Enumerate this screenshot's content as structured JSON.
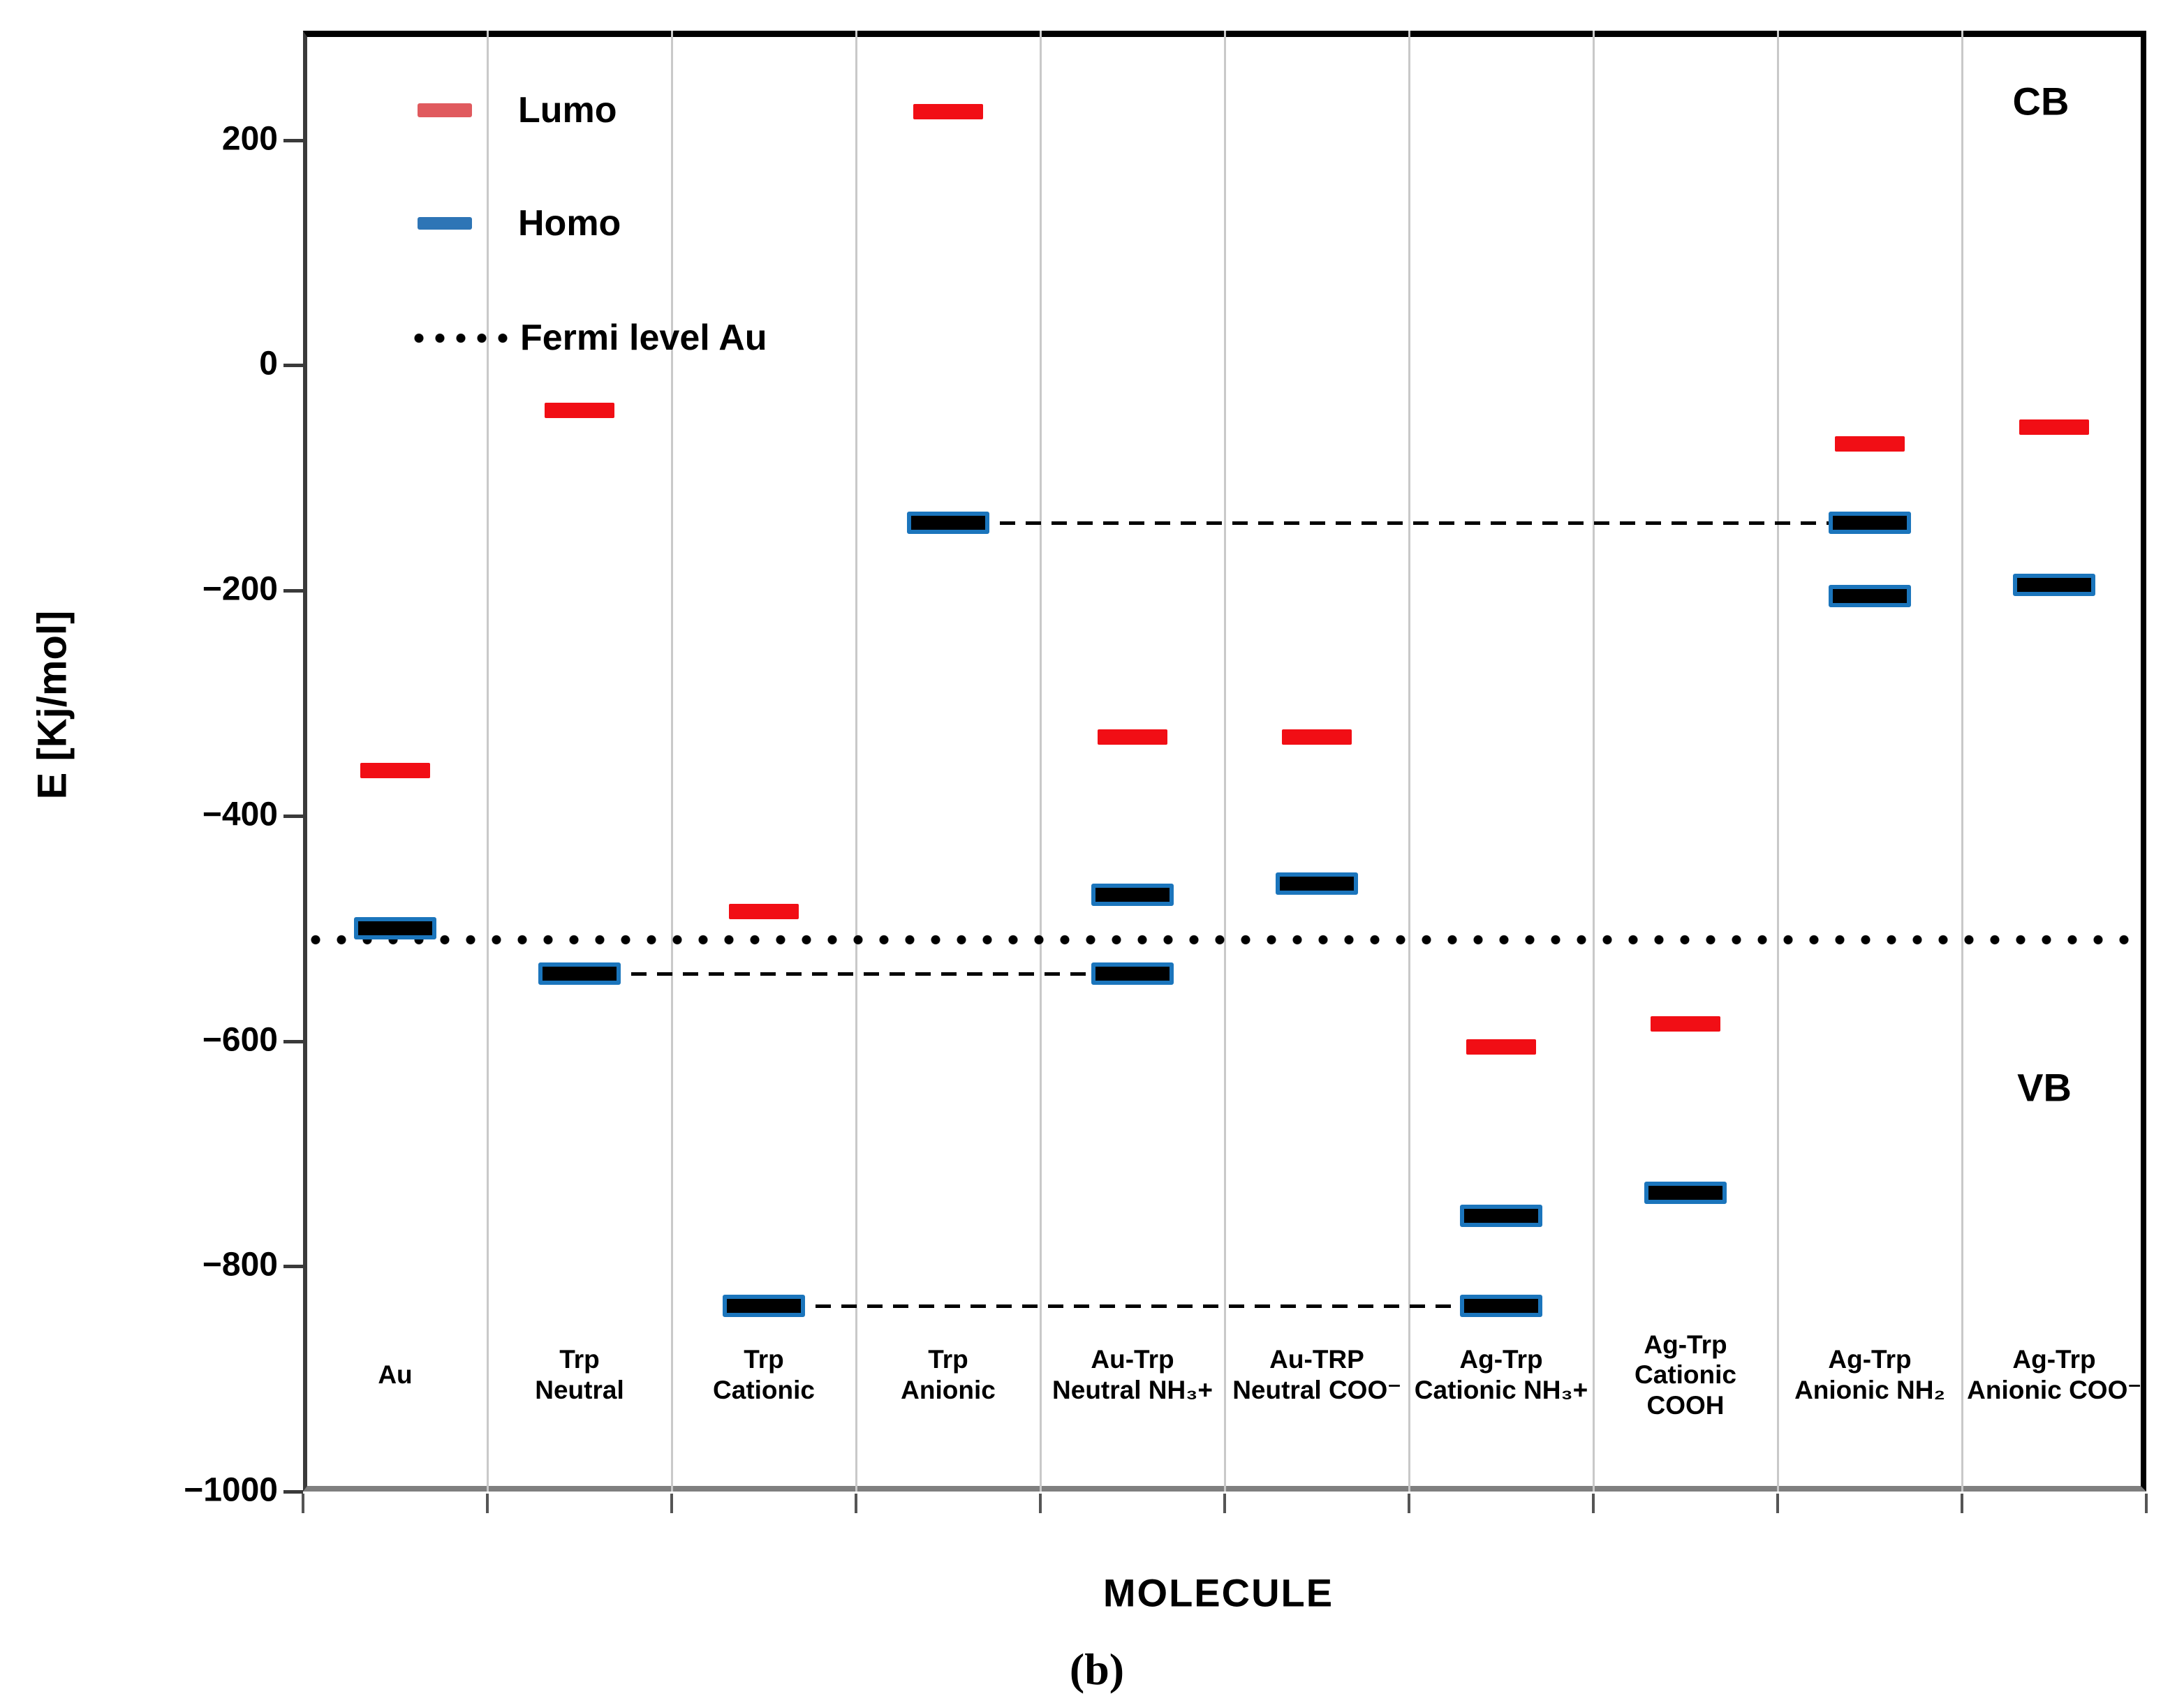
{
  "chart_data": {
    "type": "scatter",
    "subtype": "energy-level-diagram",
    "title": "(b)",
    "xlabel": "MOLECULE",
    "ylabel": "E [Kj/mol]",
    "ylim": [
      -1000,
      297
    ],
    "yticks": [
      200,
      0,
      -200,
      -400,
      -600,
      -800,
      -1000
    ],
    "ytick_labels": [
      "200",
      "0",
      "−200",
      "−400",
      "−600",
      "−800",
      "−1000"
    ],
    "grid": "vertical-only",
    "legend_position": "top-left-inside",
    "fermi_level_value": -510,
    "band_labels": {
      "cb": "CB",
      "vb": "VB"
    },
    "legend": [
      {
        "label": "Lumo",
        "marker": "red-dash"
      },
      {
        "label": "Homo",
        "marker": "blue-dash"
      },
      {
        "label": "Fermi level Au",
        "marker": "black-dotted-line"
      }
    ],
    "colors": {
      "lumo": "#f10e15",
      "homo_fill": "#000000",
      "homo_edge": "#1b75bc",
      "legend_lumo": "#e05a5e",
      "legend_homo": "#2e75b6",
      "grid": "#c9c9c9",
      "fermi": "#000000"
    },
    "categories": [
      {
        "name": "Au",
        "lines": [
          "Au"
        ]
      },
      {
        "name": "Trp Neutral",
        "lines": [
          "Trp",
          "Neutral"
        ]
      },
      {
        "name": "Trp Cationic",
        "lines": [
          "Trp",
          "Cationic"
        ]
      },
      {
        "name": "Trp Anionic",
        "lines": [
          "Trp",
          "Anionic"
        ]
      },
      {
        "name": "Au-Trp Neutral NH3+",
        "lines": [
          "Au-Trp",
          "Neutral NH₃+"
        ]
      },
      {
        "name": "Au-TRP Neutral COO-",
        "lines": [
          "Au-TRP",
          "Neutral COO⁻"
        ]
      },
      {
        "name": "Ag-Trp Cationic NH3+",
        "lines": [
          "Ag-Trp",
          "Cationic NH₃+"
        ]
      },
      {
        "name": "Ag-Trp Cationic COOH",
        "lines": [
          "Ag-Trp",
          "Cationic",
          "COOH"
        ]
      },
      {
        "name": "Ag-Trp Anionic NH2",
        "lines": [
          "Ag-Trp",
          "Anionic NH₂"
        ]
      },
      {
        "name": "Ag-Trp Anionic COO-",
        "lines": [
          "Ag-Trp",
          "Anionic COO⁻"
        ]
      }
    ],
    "series": [
      {
        "name": "Lumo",
        "values": [
          -360,
          -40,
          -485,
          225,
          -330,
          -330,
          -605,
          -585,
          -70,
          -55
        ]
      },
      {
        "name": "Homo",
        "values_per_category": [
          [
            -500
          ],
          [
            -540
          ],
          [
            -835
          ],
          [
            -140
          ],
          [
            -470,
            -540
          ],
          [
            -460
          ],
          [
            -755,
            -835
          ],
          [
            -735
          ],
          [
            -140,
            -205
          ],
          [
            -195
          ]
        ]
      }
    ],
    "dashed_connectors": [
      {
        "from_category": 1,
        "to_category": 4,
        "value": -540
      },
      {
        "from_category": 2,
        "to_category": 6,
        "value": -835
      },
      {
        "from_category": 3,
        "to_category": 8,
        "value": -140
      }
    ]
  }
}
